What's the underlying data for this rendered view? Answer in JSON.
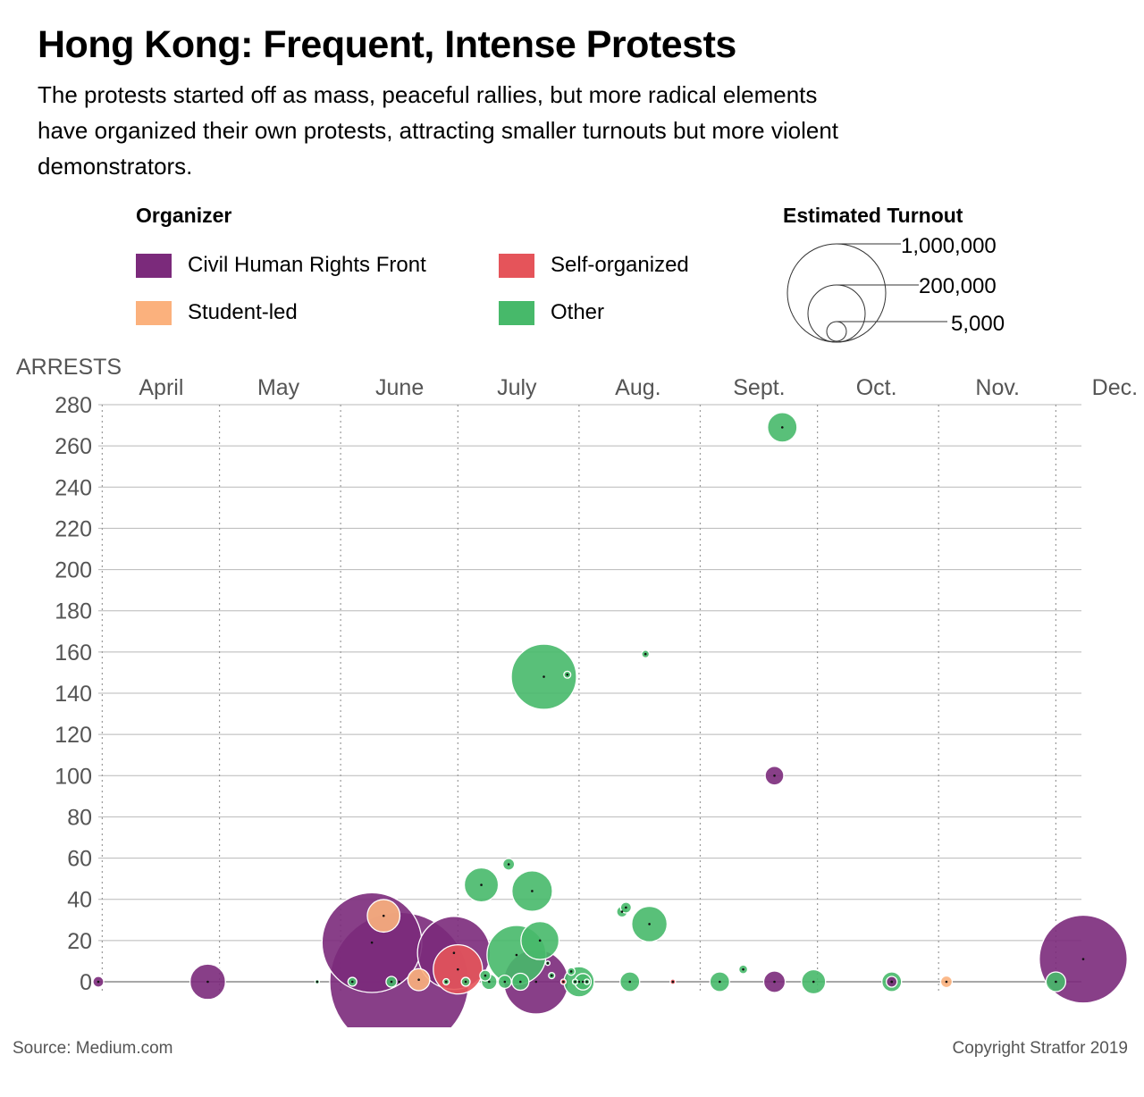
{
  "header": {
    "title": "Hong Kong: Frequent, Intense Protests",
    "subtitle": "The protests started off as mass, peaceful rallies, but more radical elements have organized their own protests, attracting smaller turnouts but more violent demonstrators."
  },
  "legend": {
    "title": "Organizer",
    "items": [
      {
        "label": "Civil Human Rights Front",
        "color": "#7b2a7b"
      },
      {
        "label": "Self-organized",
        "color": "#e5545a"
      },
      {
        "label": "Student-led",
        "color": "#fbb17d"
      },
      {
        "label": "Other",
        "color": "#47b96a"
      }
    ]
  },
  "size_legend": {
    "title": "Estimated Turnout",
    "items": [
      {
        "label": "1,000,000",
        "value": 1000000
      },
      {
        "label": "200,000",
        "value": 200000
      },
      {
        "label": "5,000",
        "value": 5000
      }
    ]
  },
  "footer": {
    "source": "Source: Medium.com",
    "copyright": "Copyright Stratfor 2019"
  },
  "chart_data": {
    "type": "scatter",
    "ylabel": "ARRESTS",
    "yticks": [
      0,
      20,
      40,
      60,
      80,
      100,
      120,
      140,
      160,
      180,
      200,
      220,
      240,
      260,
      280
    ],
    "ylim": [
      0,
      280
    ],
    "months": [
      "April",
      "May",
      "June",
      "July",
      "Aug.",
      "Sept.",
      "Oct.",
      "Nov.",
      "Dec."
    ],
    "x_range": [
      "2019-03-31",
      "2019-12-08"
    ],
    "grid": "horizontal solid, vertical dotted at month starts",
    "series": [
      {
        "name": "Civil Human Rights Front",
        "points": [
          {
            "date": "2019-03-31",
            "arrests": 0,
            "turnout": 12000
          },
          {
            "date": "2019-04-28",
            "arrests": 0,
            "turnout": 130000
          },
          {
            "date": "2019-06-09",
            "arrests": 19,
            "turnout": 1030000
          },
          {
            "date": "2019-06-16",
            "arrests": 0,
            "turnout": 2000000
          },
          {
            "date": "2019-06-30",
            "arrests": 14,
            "turnout": 550000
          },
          {
            "date": "2019-07-21",
            "arrests": 0,
            "turnout": 430000
          },
          {
            "date": "2019-09-20",
            "arrests": 100,
            "turnout": 36000
          },
          {
            "date": "2019-09-20",
            "arrests": 0,
            "turnout": 48000
          },
          {
            "date": "2019-10-20",
            "arrests": 0,
            "turnout": 12000
          },
          {
            "date": "2019-12-08",
            "arrests": 11,
            "turnout": 800000
          }
        ]
      },
      {
        "name": "Self-organized",
        "points": [
          {
            "date": "2019-07-01",
            "arrests": 6,
            "turnout": 250000
          },
          {
            "date": "2019-07-28",
            "arrests": 0,
            "turnout": 3000
          },
          {
            "date": "2019-08-25",
            "arrests": 0,
            "turnout": 3000
          }
        ]
      },
      {
        "name": "Student-led",
        "points": [
          {
            "date": "2019-06-12",
            "arrests": 32,
            "turnout": 110000
          },
          {
            "date": "2019-06-21",
            "arrests": 1,
            "turnout": 50000
          },
          {
            "date": "2019-11-03",
            "arrests": 0,
            "turnout": 14000
          }
        ]
      },
      {
        "name": "Other",
        "points": [
          {
            "date": "2019-05-26",
            "arrests": 0,
            "turnout": 2000
          },
          {
            "date": "2019-06-04",
            "arrests": 0,
            "turnout": 8000
          },
          {
            "date": "2019-06-14",
            "arrests": 0,
            "turnout": 12000
          },
          {
            "date": "2019-06-28",
            "arrests": 0,
            "turnout": 4000
          },
          {
            "date": "2019-07-03",
            "arrests": 0,
            "turnout": 8000
          },
          {
            "date": "2019-07-07",
            "arrests": 47,
            "turnout": 120000
          },
          {
            "date": "2019-07-08",
            "arrests": 3,
            "turnout": 12000
          },
          {
            "date": "2019-07-09",
            "arrests": 0,
            "turnout": 25000
          },
          {
            "date": "2019-07-13",
            "arrests": 0,
            "turnout": 18000
          },
          {
            "date": "2019-07-14",
            "arrests": 57,
            "turnout": 14000
          },
          {
            "date": "2019-07-16",
            "arrests": 13,
            "turnout": 360000
          },
          {
            "date": "2019-07-17",
            "arrests": 0,
            "turnout": 30000
          },
          {
            "date": "2019-07-20",
            "arrests": 44,
            "turnout": 170000
          },
          {
            "date": "2019-07-22",
            "arrests": 20,
            "turnout": 150000
          },
          {
            "date": "2019-07-23",
            "arrests": 148,
            "turnout": 440000
          },
          {
            "date": "2019-07-24",
            "arrests": 9,
            "turnout": 2000
          },
          {
            "date": "2019-07-25",
            "arrests": 3,
            "turnout": 4000
          },
          {
            "date": "2019-07-29",
            "arrests": 149,
            "turnout": 5000
          },
          {
            "date": "2019-07-30",
            "arrests": 5,
            "turnout": 6000
          },
          {
            "date": "2019-07-31",
            "arrests": 0,
            "turnout": 3000
          },
          {
            "date": "2019-08-01",
            "arrests": 0,
            "turnout": 95000
          },
          {
            "date": "2019-08-02",
            "arrests": 0,
            "turnout": 28000
          },
          {
            "date": "2019-08-03",
            "arrests": 0,
            "turnout": 3000
          },
          {
            "date": "2019-08-12",
            "arrests": 34,
            "turnout": 12000
          },
          {
            "date": "2019-08-13",
            "arrests": 36,
            "turnout": 12000
          },
          {
            "date": "2019-08-14",
            "arrests": 0,
            "turnout": 40000
          },
          {
            "date": "2019-08-18",
            "arrests": 159,
            "turnout": 6000
          },
          {
            "date": "2019-08-19",
            "arrests": 28,
            "turnout": 130000
          },
          {
            "date": "2019-09-06",
            "arrests": 0,
            "turnout": 40000
          },
          {
            "date": "2019-09-12",
            "arrests": 6,
            "turnout": 8000
          },
          {
            "date": "2019-09-22",
            "arrests": 269,
            "turnout": 90000
          },
          {
            "date": "2019-09-30",
            "arrests": 0,
            "turnout": 60000
          },
          {
            "date": "2019-10-20",
            "arrests": 0,
            "turnout": 40000
          },
          {
            "date": "2019-12-01",
            "arrests": 0,
            "turnout": 40000
          }
        ]
      }
    ]
  }
}
